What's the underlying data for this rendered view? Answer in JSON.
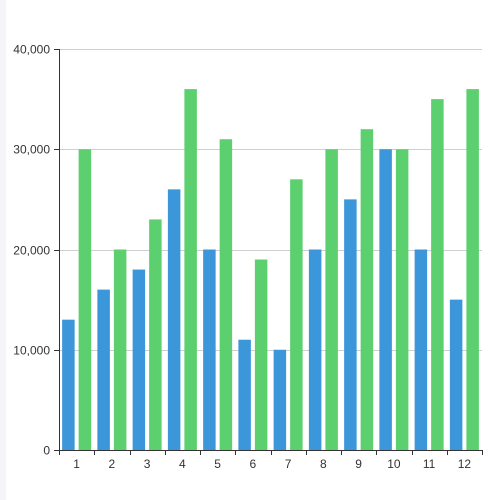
{
  "chart_data": {
    "type": "bar",
    "categories": [
      "1",
      "2",
      "3",
      "4",
      "5",
      "6",
      "7",
      "8",
      "9",
      "10",
      "11",
      "12"
    ],
    "series": [
      {
        "color": "#3b97d9",
        "values": [
          13000,
          16000,
          18000,
          26000,
          20000,
          11000,
          10000,
          20000,
          25000,
          30000,
          20000,
          15000
        ]
      },
      {
        "color": "#5ccf6f",
        "values": [
          30000,
          20000,
          23000,
          36000,
          31000,
          19000,
          27000,
          30000,
          32000,
          30000,
          35000,
          36000
        ]
      }
    ],
    "ylim": [
      0,
      40000
    ],
    "yticks": [
      0,
      10000,
      20000,
      30000,
      40000
    ],
    "ytick_labels": [
      "0",
      "10,000",
      "20,000",
      "30,000",
      "40,000"
    ],
    "grid": true,
    "title": "",
    "xlabel": "",
    "ylabel": ""
  }
}
